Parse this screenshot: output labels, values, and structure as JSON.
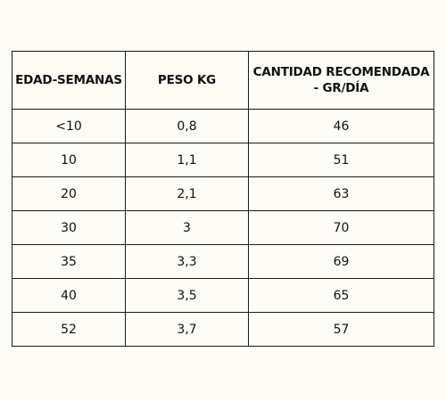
{
  "table": {
    "headers": [
      "EDAD-SEMANAS",
      "PESO KG",
      "CANTIDAD RECOMENDADA - GR/DÍA"
    ],
    "rows": [
      [
        "<10",
        "0,8",
        "46"
      ],
      [
        "10",
        "1,1",
        "51"
      ],
      [
        "20",
        "2,1",
        "63"
      ],
      [
        "30",
        "3",
        "70"
      ],
      [
        "35",
        "3,3",
        "69"
      ],
      [
        "40",
        "3,5",
        "65"
      ],
      [
        "52",
        "3,7",
        "57"
      ]
    ]
  }
}
